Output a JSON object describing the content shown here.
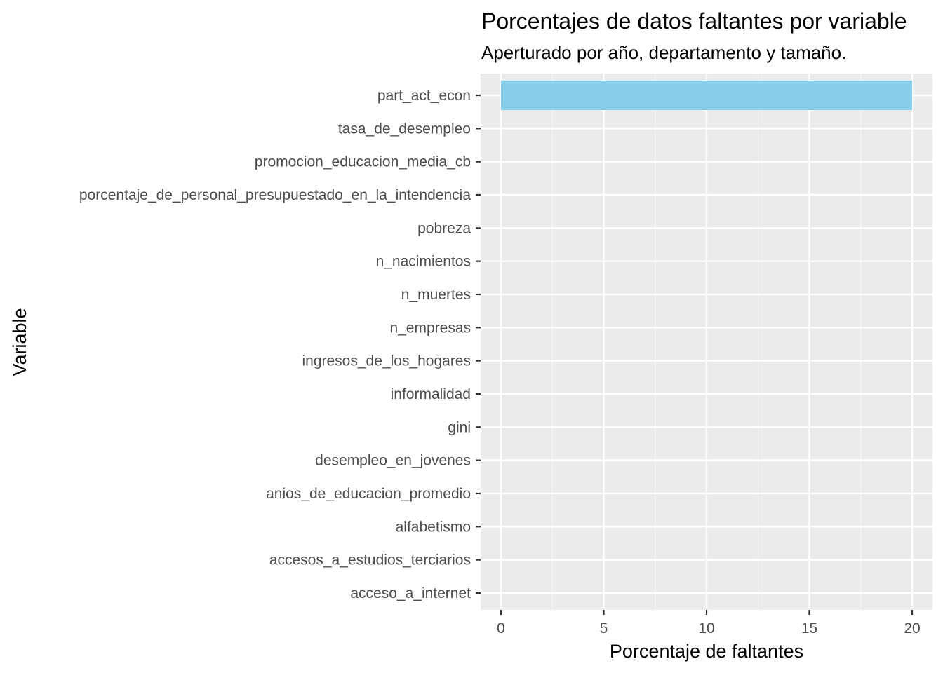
{
  "chart_data": {
    "type": "bar",
    "orientation": "horizontal",
    "title": "Porcentajes de datos faltantes por variable",
    "subtitle": "Aperturado por año, departamento y tamaño.",
    "xlabel": "Porcentaje de faltantes",
    "ylabel": "Variable",
    "categories": [
      "part_act_econ",
      "tasa_de_desempleo",
      "promocion_educacion_media_cb",
      "porcentaje_de_personal_presupuestado_en_la_intendencia",
      "pobreza",
      "n_nacimientos",
      "n_muertes",
      "n_empresas",
      "ingresos_de_los_hogares",
      "informalidad",
      "gini",
      "desempleo_en_jovenes",
      "anios_de_educacion_promedio",
      "alfabetismo",
      "accesos_a_estudios_terciarios",
      "acceso_a_internet"
    ],
    "values": [
      20,
      0,
      0,
      0,
      0,
      0,
      0,
      0,
      0,
      0,
      0,
      0,
      0,
      0,
      0,
      0
    ],
    "xlim": [
      -1,
      21
    ],
    "xticks": [
      0,
      5,
      10,
      15,
      20
    ],
    "xtick_labels": [
      "0",
      "5",
      "10",
      "15",
      "20"
    ],
    "grid": true,
    "legend": "none",
    "colors": {
      "bar": "#87ceeb",
      "panel_background": "#ebebeb",
      "grid_major": "#ffffff",
      "grid_minor": "#f5f5f5",
      "tick_text": "#4d4d4d",
      "tick_mark": "#333333"
    }
  }
}
